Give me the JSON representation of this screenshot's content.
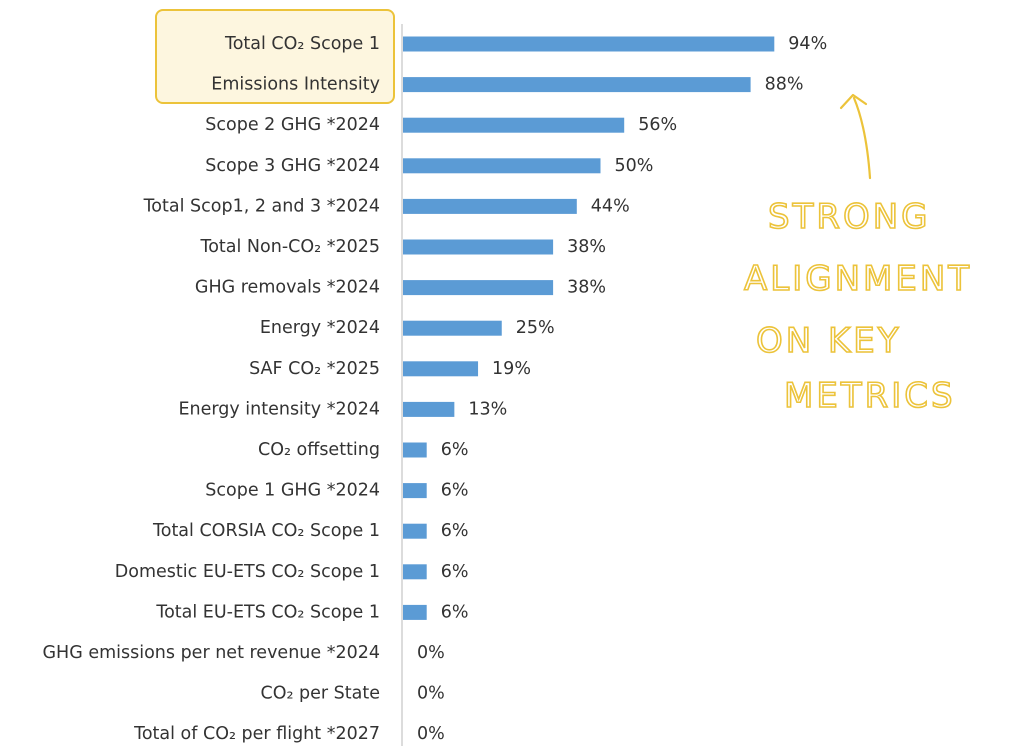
{
  "chart_data": {
    "type": "bar",
    "orientation": "horizontal",
    "categories": [
      "Total CO₂ Scope 1",
      "Emissions Intensity",
      "Scope 2 GHG *2024",
      "Scope 3 GHG *2024",
      "Total Scop1, 2 and 3 *2024",
      "Total Non-CO₂ *2025",
      "GHG removals *2024",
      "Energy *2024",
      "SAF CO₂ *2025",
      "Energy intensity *2024",
      "CO₂ offsetting",
      "Scope 1 GHG *2024",
      "Total CORSIA CO₂ Scope 1",
      "Domestic EU-ETS CO₂ Scope 1",
      "Total EU-ETS CO₂ Scope 1",
      "GHG emissions per net revenue *2024",
      "CO₂ per State",
      "Total of CO₂ per flight *2027"
    ],
    "values": [
      94,
      88,
      56,
      50,
      44,
      38,
      38,
      25,
      19,
      13,
      6,
      6,
      6,
      6,
      6,
      0,
      0,
      0
    ],
    "value_labels": [
      "94%",
      "88%",
      "56%",
      "50%",
      "44%",
      "38%",
      "38%",
      "25%",
      "19%",
      "13%",
      "6%",
      "6%",
      "6%",
      "6%",
      "6%",
      "0%",
      "0%",
      "0%"
    ],
    "xlim": [
      0,
      100
    ],
    "grid": false,
    "bar_color": "#5b9bd5",
    "highlighted_categories": [
      "Total CO₂ Scope 1",
      "Emissions Intensity"
    ],
    "highlight_color": "#fdf6df",
    "highlight_border_color": "#ecc33a"
  },
  "annotation": {
    "lines": [
      "STRONG",
      "ALIGNMENT",
      "ON KEY",
      "METRICS"
    ],
    "color": "#ecc33a"
  }
}
